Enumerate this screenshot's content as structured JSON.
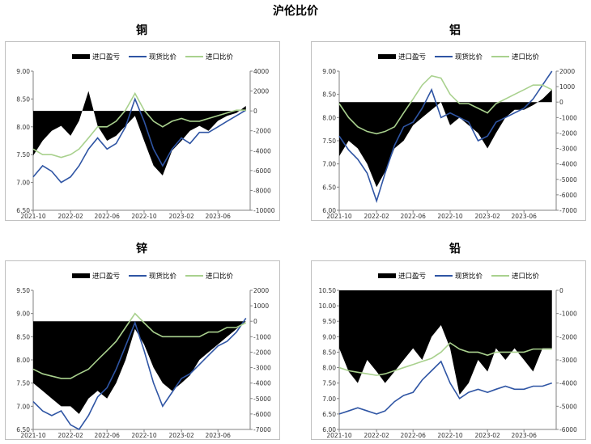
{
  "page_title": "沪伦比价",
  "legend": {
    "import_pl": "进口盈亏",
    "spot_ratio": "现货比价",
    "import_ratio": "进口比价"
  },
  "colors": {
    "import_pl": "#000000",
    "spot_ratio": "#2f55a4",
    "import_ratio": "#a9d18e"
  },
  "x_tick_labels": [
    "2021-10",
    "2022-02",
    "2022-06",
    "2022-10",
    "2023-02",
    "2023-06"
  ],
  "chart_data": [
    {
      "id": "copper",
      "title": "铜",
      "type": "line",
      "x_range": [
        "2021-10-01",
        "2023-09-15"
      ],
      "y_left": {
        "ticks": [
          "6.50",
          "7.00",
          "7.50",
          "8.00",
          "8.50",
          "9.00"
        ],
        "min": 6.5,
        "max": 9.0
      },
      "y_right": {
        "ticks": [
          "-10000",
          "-8000",
          "-6000",
          "-4000",
          "-2000",
          "0",
          "2000",
          "4000"
        ],
        "min": -10000,
        "max": 4000
      },
      "series": [
        {
          "name": "进口盈亏",
          "type": "area",
          "axis": "right",
          "x": [
            "2021-10-01",
            "2021-11-01",
            "2021-12-01",
            "2022-01-01",
            "2022-02-01",
            "2022-03-01",
            "2022-04-01",
            "2022-05-01",
            "2022-06-01",
            "2022-07-01",
            "2022-08-01",
            "2022-09-01",
            "2022-10-01",
            "2022-11-01",
            "2022-12-01",
            "2023-01-01",
            "2023-02-01",
            "2023-03-01",
            "2023-04-01",
            "2023-05-01",
            "2023-06-01",
            "2023-07-01",
            "2023-08-01",
            "2023-09-01"
          ],
          "values": [
            -4500,
            -3000,
            -2000,
            -1500,
            -2500,
            -1000,
            2000,
            -1500,
            -3000,
            -2500,
            -1500,
            -500,
            -3000,
            -5500,
            -6500,
            -4000,
            -3000,
            -2000,
            -1500,
            -2000,
            -1000,
            -500,
            -200,
            500
          ]
        },
        {
          "name": "现货比价",
          "type": "line",
          "axis": "left",
          "x": [
            "2021-10-01",
            "2021-11-01",
            "2021-12-01",
            "2022-01-01",
            "2022-02-01",
            "2022-03-01",
            "2022-04-01",
            "2022-05-01",
            "2022-06-01",
            "2022-07-01",
            "2022-08-01",
            "2022-09-01",
            "2022-10-01",
            "2022-11-01",
            "2022-12-01",
            "2023-01-01",
            "2023-02-01",
            "2023-03-01",
            "2023-04-01",
            "2023-05-01",
            "2023-06-01",
            "2023-07-01",
            "2023-08-01",
            "2023-09-01"
          ],
          "values": [
            7.1,
            7.3,
            7.2,
            7.0,
            7.1,
            7.3,
            7.6,
            7.8,
            7.6,
            7.7,
            8.0,
            8.5,
            8.1,
            7.6,
            7.3,
            7.6,
            7.8,
            7.7,
            7.9,
            7.9,
            8.0,
            8.1,
            8.2,
            8.3
          ]
        },
        {
          "name": "进口比价",
          "type": "line",
          "axis": "left",
          "x": [
            "2021-10-01",
            "2021-11-01",
            "2021-12-01",
            "2022-01-01",
            "2022-02-01",
            "2022-03-01",
            "2022-04-01",
            "2022-05-01",
            "2022-06-01",
            "2022-07-01",
            "2022-08-01",
            "2022-09-01",
            "2022-10-01",
            "2022-11-01",
            "2022-12-01",
            "2023-01-01",
            "2023-02-01",
            "2023-03-01",
            "2023-04-01",
            "2023-05-01",
            "2023-06-01",
            "2023-07-01",
            "2023-08-01",
            "2023-09-01"
          ],
          "values": [
            7.6,
            7.5,
            7.5,
            7.45,
            7.5,
            7.6,
            7.8,
            8.0,
            8.0,
            8.1,
            8.3,
            8.6,
            8.3,
            8.1,
            8.0,
            8.1,
            8.15,
            8.1,
            8.1,
            8.15,
            8.2,
            8.25,
            8.3,
            8.3
          ]
        }
      ]
    },
    {
      "id": "aluminum",
      "title": "铝",
      "type": "line",
      "x_range": [
        "2021-10-01",
        "2023-09-15"
      ],
      "y_left": {
        "ticks": [
          "6.00",
          "6.50",
          "7.00",
          "7.50",
          "8.00",
          "8.50",
          "9.00"
        ],
        "min": 6.0,
        "max": 9.0
      },
      "y_right": {
        "ticks": [
          "-7000",
          "-6000",
          "-5000",
          "-4000",
          "-3000",
          "-2000",
          "-1000",
          "0",
          "1000",
          "2000"
        ],
        "min": -7000,
        "max": 2000
      },
      "series": [
        {
          "name": "进口盈亏",
          "type": "area",
          "axis": "right",
          "x": [
            "2021-10-01",
            "2021-11-01",
            "2021-12-01",
            "2022-01-01",
            "2022-02-01",
            "2022-03-01",
            "2022-04-01",
            "2022-05-01",
            "2022-06-01",
            "2022-07-01",
            "2022-08-01",
            "2022-09-01",
            "2022-10-01",
            "2022-11-01",
            "2022-12-01",
            "2023-01-01",
            "2023-02-01",
            "2023-03-01",
            "2023-04-01",
            "2023-05-01",
            "2023-06-01",
            "2023-07-01",
            "2023-08-01",
            "2023-09-01"
          ],
          "values": [
            -3500,
            -2500,
            -3000,
            -4000,
            -5500,
            -4500,
            -3000,
            -2500,
            -1500,
            -1000,
            -500,
            0,
            -1500,
            -1000,
            -1500,
            -2000,
            -3000,
            -2000,
            -1000,
            -500,
            -500,
            -200,
            200,
            800
          ]
        },
        {
          "name": "现货比价",
          "type": "line",
          "axis": "left",
          "x": [
            "2021-10-01",
            "2021-11-01",
            "2021-12-01",
            "2022-01-01",
            "2022-02-01",
            "2022-03-01",
            "2022-04-01",
            "2022-05-01",
            "2022-06-01",
            "2022-07-01",
            "2022-08-01",
            "2022-09-01",
            "2022-10-01",
            "2022-11-01",
            "2022-12-01",
            "2023-01-01",
            "2023-02-01",
            "2023-03-01",
            "2023-04-01",
            "2023-05-01",
            "2023-06-01",
            "2023-07-01",
            "2023-08-01",
            "2023-09-01"
          ],
          "values": [
            7.6,
            7.3,
            7.1,
            6.8,
            6.2,
            6.8,
            7.4,
            7.8,
            7.9,
            8.2,
            8.6,
            8.0,
            8.1,
            8.0,
            7.9,
            7.5,
            7.6,
            7.9,
            8.0,
            8.1,
            8.2,
            8.4,
            8.7,
            9.0
          ]
        },
        {
          "name": "进口比价",
          "type": "line",
          "axis": "left",
          "x": [
            "2021-10-01",
            "2021-11-01",
            "2021-12-01",
            "2022-01-01",
            "2022-02-01",
            "2022-03-01",
            "2022-04-01",
            "2022-05-01",
            "2022-06-01",
            "2022-07-01",
            "2022-08-01",
            "2022-09-01",
            "2022-10-01",
            "2022-11-01",
            "2022-12-01",
            "2023-01-01",
            "2023-02-01",
            "2023-03-01",
            "2023-04-01",
            "2023-05-01",
            "2023-06-01",
            "2023-07-01",
            "2023-08-01",
            "2023-09-01"
          ],
          "values": [
            8.3,
            8.0,
            7.8,
            7.7,
            7.65,
            7.7,
            7.8,
            8.1,
            8.4,
            8.7,
            8.9,
            8.85,
            8.5,
            8.3,
            8.3,
            8.2,
            8.1,
            8.3,
            8.4,
            8.5,
            8.6,
            8.7,
            8.7,
            8.6
          ]
        }
      ]
    },
    {
      "id": "zinc",
      "title": "锌",
      "type": "line",
      "x_range": [
        "2021-10-01",
        "2023-09-15"
      ],
      "y_left": {
        "ticks": [
          "6.50",
          "7.00",
          "7.50",
          "8.00",
          "8.50",
          "9.00",
          "9.50"
        ],
        "min": 6.5,
        "max": 9.5
      },
      "y_right": {
        "ticks": [
          "-7000",
          "-6000",
          "-5000",
          "-4000",
          "-3000",
          "-2000",
          "-1000",
          "0",
          "1000",
          "2000"
        ],
        "min": -7000,
        "max": 2000
      },
      "series": [
        {
          "name": "进口盈亏",
          "type": "area",
          "axis": "right",
          "x": [
            "2021-10-01",
            "2021-11-01",
            "2021-12-01",
            "2022-01-01",
            "2022-02-01",
            "2022-03-01",
            "2022-04-01",
            "2022-05-01",
            "2022-06-01",
            "2022-07-01",
            "2022-08-01",
            "2022-09-01",
            "2022-10-01",
            "2022-11-01",
            "2022-12-01",
            "2023-01-01",
            "2023-02-01",
            "2023-03-01",
            "2023-04-01",
            "2023-05-01",
            "2023-06-01",
            "2023-07-01",
            "2023-08-01",
            "2023-09-01"
          ],
          "values": [
            -4000,
            -4500,
            -5000,
            -5500,
            -5500,
            -6000,
            -5000,
            -4500,
            -5000,
            -4000,
            -2500,
            -500,
            -1500,
            -3000,
            -4000,
            -4500,
            -4000,
            -3500,
            -2500,
            -2000,
            -1500,
            -1000,
            -500,
            0
          ]
        },
        {
          "name": "现货比价",
          "type": "line",
          "axis": "left",
          "x": [
            "2021-10-01",
            "2021-11-01",
            "2021-12-01",
            "2022-01-01",
            "2022-02-01",
            "2022-03-01",
            "2022-04-01",
            "2022-05-01",
            "2022-06-01",
            "2022-07-01",
            "2022-08-01",
            "2022-09-01",
            "2022-10-01",
            "2022-11-01",
            "2022-12-01",
            "2023-01-01",
            "2023-02-01",
            "2023-03-01",
            "2023-04-01",
            "2023-05-01",
            "2023-06-01",
            "2023-07-01",
            "2023-08-01",
            "2023-09-01"
          ],
          "values": [
            7.1,
            6.9,
            6.8,
            6.9,
            6.6,
            6.5,
            6.8,
            7.2,
            7.4,
            7.8,
            8.3,
            8.8,
            8.2,
            7.5,
            7.0,
            7.3,
            7.6,
            7.7,
            7.9,
            8.1,
            8.3,
            8.4,
            8.6,
            8.9
          ]
        },
        {
          "name": "进口比价",
          "type": "line",
          "axis": "left",
          "x": [
            "2021-10-01",
            "2021-11-01",
            "2021-12-01",
            "2022-01-01",
            "2022-02-01",
            "2022-03-01",
            "2022-04-01",
            "2022-05-01",
            "2022-06-01",
            "2022-07-01",
            "2022-08-01",
            "2022-09-01",
            "2022-10-01",
            "2022-11-01",
            "2022-12-01",
            "2023-01-01",
            "2023-02-01",
            "2023-03-01",
            "2023-04-01",
            "2023-05-01",
            "2023-06-01",
            "2023-07-01",
            "2023-08-01",
            "2023-09-01"
          ],
          "values": [
            7.8,
            7.7,
            7.65,
            7.6,
            7.6,
            7.7,
            7.8,
            8.0,
            8.2,
            8.4,
            8.7,
            9.0,
            8.8,
            8.6,
            8.5,
            8.5,
            8.5,
            8.5,
            8.5,
            8.6,
            8.6,
            8.7,
            8.7,
            8.8
          ]
        }
      ]
    },
    {
      "id": "lead",
      "title": "铅",
      "type": "line",
      "x_range": [
        "2021-10-01",
        "2023-09-15"
      ],
      "y_left": {
        "ticks": [
          "6.00",
          "6.50",
          "7.00",
          "7.50",
          "8.00",
          "8.50",
          "9.00",
          "9.50",
          "10.00",
          "10.50"
        ],
        "min": 6.0,
        "max": 10.5
      },
      "y_right": {
        "ticks": [
          "-6000",
          "-5000",
          "-4000",
          "-3000",
          "-2000",
          "-1000",
          "0"
        ],
        "min": -6000,
        "max": 0
      },
      "series": [
        {
          "name": "进口盈亏",
          "type": "area",
          "axis": "right",
          "x": [
            "2021-10-01",
            "2021-11-01",
            "2021-12-01",
            "2022-01-01",
            "2022-02-01",
            "2022-03-01",
            "2022-04-01",
            "2022-05-01",
            "2022-06-01",
            "2022-07-01",
            "2022-08-01",
            "2022-09-01",
            "2022-10-01",
            "2022-11-01",
            "2022-12-01",
            "2023-01-01",
            "2023-02-01",
            "2023-03-01",
            "2023-04-01",
            "2023-05-01",
            "2023-06-01",
            "2023-07-01",
            "2023-08-01",
            "2023-09-01"
          ],
          "values": [
            -2500,
            -3500,
            -4000,
            -3000,
            -3500,
            -4000,
            -3500,
            -3000,
            -2500,
            -3000,
            -2000,
            -1500,
            -2500,
            -4500,
            -4000,
            -3000,
            -3500,
            -2500,
            -3000,
            -2500,
            -3000,
            -3500,
            -2500,
            -2500
          ]
        },
        {
          "name": "现货比价",
          "type": "line",
          "axis": "left",
          "x": [
            "2021-10-01",
            "2021-11-01",
            "2021-12-01",
            "2022-01-01",
            "2022-02-01",
            "2022-03-01",
            "2022-04-01",
            "2022-05-01",
            "2022-06-01",
            "2022-07-01",
            "2022-08-01",
            "2022-09-01",
            "2022-10-01",
            "2022-11-01",
            "2022-12-01",
            "2023-01-01",
            "2023-02-01",
            "2023-03-01",
            "2023-04-01",
            "2023-05-01",
            "2023-06-01",
            "2023-07-01",
            "2023-08-01",
            "2023-09-01"
          ],
          "values": [
            6.5,
            6.6,
            6.7,
            6.6,
            6.5,
            6.6,
            6.9,
            7.1,
            7.2,
            7.6,
            7.9,
            8.2,
            7.5,
            7.0,
            7.2,
            7.3,
            7.2,
            7.3,
            7.4,
            7.3,
            7.3,
            7.4,
            7.4,
            7.5
          ]
        },
        {
          "name": "进口比价",
          "type": "line",
          "axis": "left",
          "x": [
            "2021-10-01",
            "2021-11-01",
            "2021-12-01",
            "2022-01-01",
            "2022-02-01",
            "2022-03-01",
            "2022-04-01",
            "2022-05-01",
            "2022-06-01",
            "2022-07-01",
            "2022-08-01",
            "2022-09-01",
            "2022-10-01",
            "2022-11-01",
            "2022-12-01",
            "2023-01-01",
            "2023-02-01",
            "2023-03-01",
            "2023-04-01",
            "2023-05-01",
            "2023-06-01",
            "2023-07-01",
            "2023-08-01",
            "2023-09-01"
          ],
          "values": [
            8.0,
            7.9,
            7.85,
            7.8,
            7.75,
            7.8,
            7.9,
            8.0,
            8.1,
            8.2,
            8.3,
            8.5,
            8.8,
            8.6,
            8.5,
            8.5,
            8.4,
            8.5,
            8.5,
            8.5,
            8.5,
            8.6,
            8.6,
            8.6
          ]
        }
      ]
    }
  ]
}
